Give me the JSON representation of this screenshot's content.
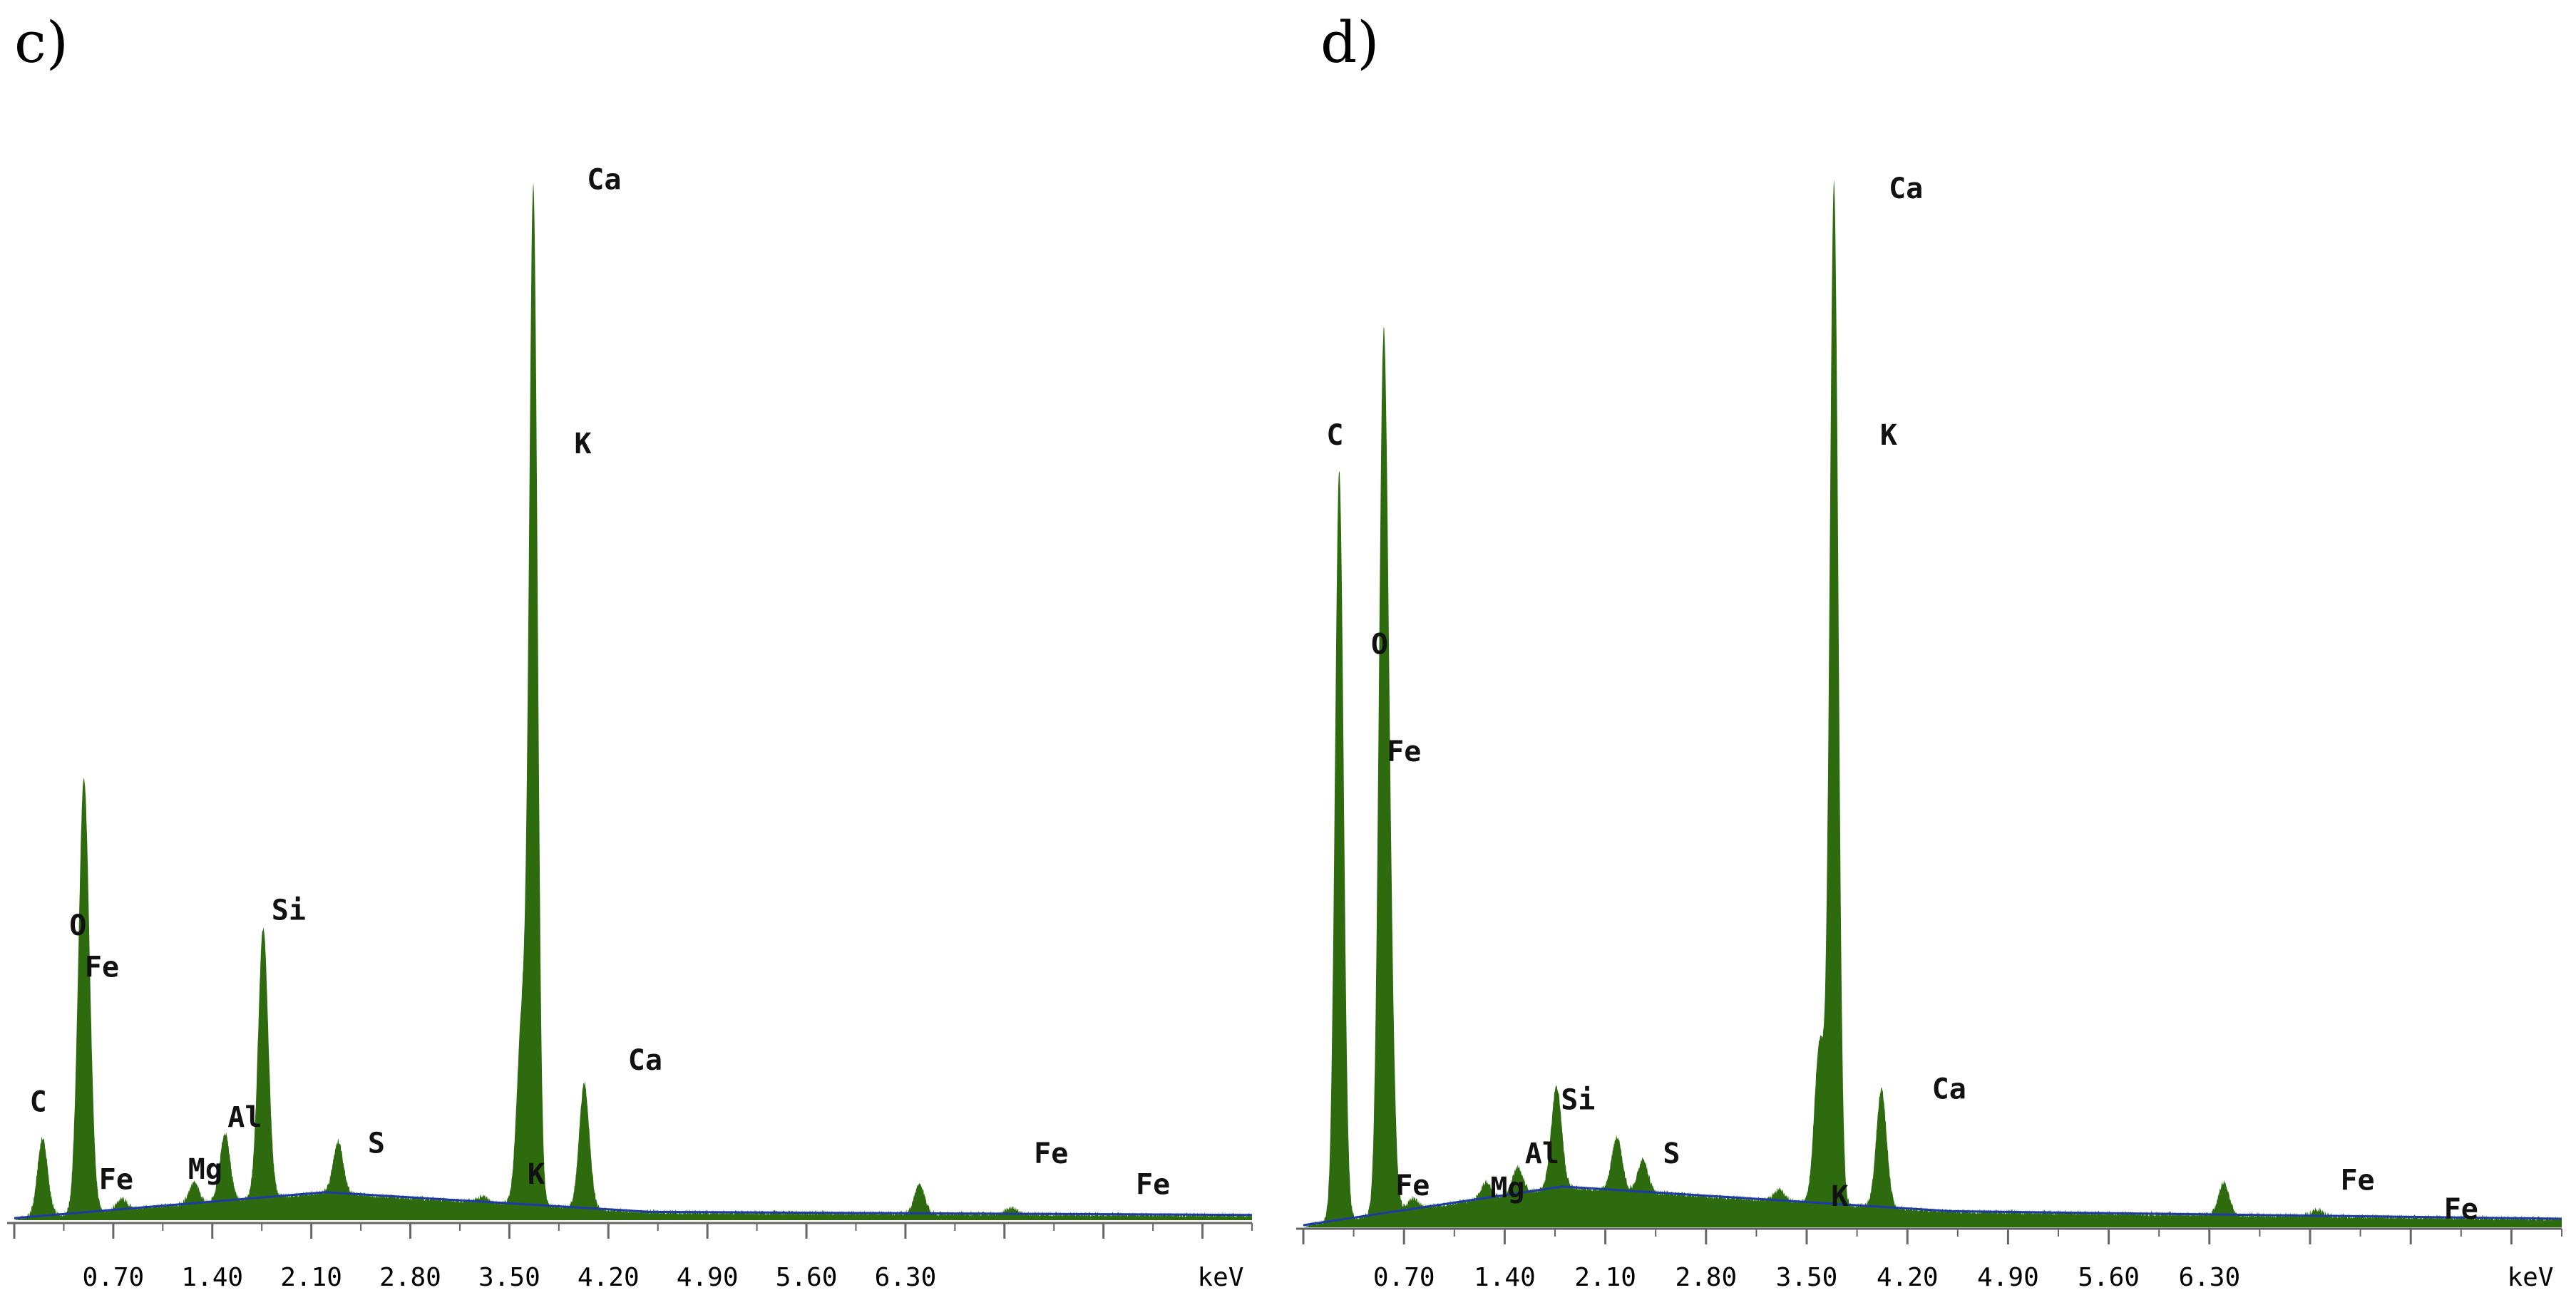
{
  "chart_data": [
    {
      "type": "area",
      "panel": "c)",
      "xlabel": "keV",
      "xlim": [
        0.0,
        8.75
      ],
      "ylim": [
        0,
        100
      ],
      "x_ticks": [
        "0.70",
        "1.40",
        "2.10",
        "2.80",
        "3.50",
        "4.20",
        "4.90",
        "5.60",
        "6.30"
      ],
      "peaks": [
        {
          "element": "C",
          "energy": 0.2,
          "height": 7.5
        },
        {
          "element": "O",
          "energy": 0.48,
          "height": 25.5
        },
        {
          "element": "Fe",
          "energy": 0.51,
          "height": 20
        },
        {
          "element": "Fe",
          "energy": 0.76,
          "height": 1.0
        },
        {
          "element": "Mg",
          "energy": 1.27,
          "height": 2.0
        },
        {
          "element": "Al",
          "energy": 1.49,
          "height": 6.5
        },
        {
          "element": "Si",
          "energy": 1.76,
          "height": 26
        },
        {
          "element": "S",
          "energy": 2.29,
          "height": 5.0
        },
        {
          "element": "K",
          "energy": 3.31,
          "height": 0.5
        },
        {
          "element": "Ca",
          "energy": 3.67,
          "height": 97
        },
        {
          "element": "K",
          "energy": 3.59,
          "height": 18
        },
        {
          "element": "Ca",
          "energy": 4.03,
          "height": 12
        },
        {
          "element": "Fe",
          "energy": 6.4,
          "height": 2.8
        },
        {
          "element": "Fe",
          "energy": 7.05,
          "height": 0.6
        }
      ],
      "labels": [
        {
          "text": "C",
          "energy": 0.17,
          "level": 10.5
        },
        {
          "text": "O",
          "energy": 0.45,
          "level": 27.5
        },
        {
          "text": "Fe",
          "energy": 0.62,
          "level": 23.5
        },
        {
          "text": "Fe",
          "energy": 0.72,
          "level": 3.0
        },
        {
          "text": "Mg",
          "energy": 1.35,
          "level": 4.0
        },
        {
          "text": "Al",
          "energy": 1.63,
          "level": 9.0
        },
        {
          "text": "Si",
          "energy": 1.94,
          "level": 29.0
        },
        {
          "text": "S",
          "energy": 2.56,
          "level": 6.5
        },
        {
          "text": "K",
          "energy": 3.69,
          "level": 3.5
        },
        {
          "text": "Ca",
          "energy": 4.17,
          "level": 99.5
        },
        {
          "text": "K",
          "energy": 4.02,
          "level": 74.0
        },
        {
          "text": "Ca",
          "energy": 4.46,
          "level": 14.5
        },
        {
          "text": "Fe",
          "energy": 7.33,
          "level": 5.5
        },
        {
          "text": "Fe",
          "energy": 8.05,
          "level": 2.5
        }
      ],
      "background": {
        "points": [
          [
            0.0,
            0.2
          ],
          [
            2.2,
            2.7
          ],
          [
            4.5,
            0.8
          ],
          [
            8.75,
            0.5
          ]
        ],
        "color": "#1e3aa8"
      },
      "fill_color": "#2e6a0e"
    },
    {
      "type": "area",
      "panel": "d)",
      "xlabel": "keV",
      "xlim": [
        0.0,
        8.75
      ],
      "ylim": [
        0,
        100
      ],
      "x_ticks": [
        "0.70",
        "1.40",
        "2.10",
        "2.80",
        "3.50",
        "4.20",
        "4.90",
        "5.60",
        "6.30"
      ],
      "peaks": [
        {
          "element": "C",
          "energy": 0.25,
          "height": 70
        },
        {
          "element": "O",
          "energy": 0.55,
          "height": 51
        },
        {
          "element": "Fe",
          "energy": 0.58,
          "height": 40
        },
        {
          "element": "Fe",
          "energy": 0.76,
          "height": 1.0
        },
        {
          "element": "Mg",
          "energy": 1.27,
          "height": 1.5
        },
        {
          "element": "Al",
          "energy": 1.49,
          "height": 2.5
        },
        {
          "element": "Si",
          "energy": 1.76,
          "height": 9.5
        },
        {
          "element": "S",
          "energy": 2.18,
          "height": 5.0
        },
        {
          "element": "S",
          "energy": 2.36,
          "height": 3.0
        },
        {
          "element": "K",
          "energy": 3.31,
          "height": 1.0
        },
        {
          "element": "Ca",
          "energy": 3.69,
          "height": 95
        },
        {
          "element": "K",
          "energy": 3.59,
          "height": 15
        },
        {
          "element": "Ca",
          "energy": 4.02,
          "height": 11
        },
        {
          "element": "Fe",
          "energy": 6.4,
          "height": 3.0
        },
        {
          "element": "Fe",
          "energy": 7.05,
          "height": 0.6
        }
      ],
      "labels": [
        {
          "text": "C",
          "energy": 0.22,
          "level": 73
        },
        {
          "text": "O",
          "energy": 0.53,
          "level": 53.5
        },
        {
          "text": "Fe",
          "energy": 0.7,
          "level": 43.5
        },
        {
          "text": "Fe",
          "energy": 0.76,
          "level": 3.0
        },
        {
          "text": "Mg",
          "energy": 1.42,
          "level": 2.8
        },
        {
          "text": "Al",
          "energy": 1.66,
          "level": 6.0
        },
        {
          "text": "Si",
          "energy": 1.91,
          "level": 11.0
        },
        {
          "text": "S",
          "energy": 2.56,
          "level": 6.0
        },
        {
          "text": "K",
          "energy": 3.73,
          "level": 2.0
        },
        {
          "text": "Ca",
          "energy": 4.19,
          "level": 96.0
        },
        {
          "text": "K",
          "energy": 4.07,
          "level": 73.0
        },
        {
          "text": "Ca",
          "energy": 4.49,
          "level": 12.0
        },
        {
          "text": "Fe",
          "energy": 7.33,
          "level": 3.5
        },
        {
          "text": "Fe",
          "energy": 8.05,
          "level": 0.8
        }
      ],
      "background": {
        "points": [
          [
            0.0,
            0.2
          ],
          [
            1.8,
            3.8
          ],
          [
            4.5,
            1.5
          ],
          [
            8.75,
            0.8
          ]
        ],
        "color": "#1e3aa8"
      },
      "fill_color": "#2e6a0e"
    }
  ]
}
